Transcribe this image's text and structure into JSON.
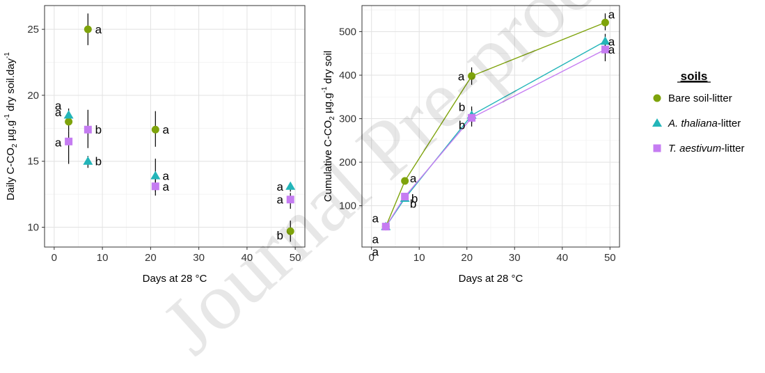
{
  "chart_data": [
    {
      "type": "scatter",
      "xlabel": "Days at 28 °C",
      "ylabel_parts": [
        "Daily C-CO",
        "2",
        " µg.g",
        "-1",
        " dry soil.day",
        "-1"
      ],
      "xlim": [
        -2,
        52
      ],
      "ylim": [
        8.5,
        26.8
      ],
      "xticks": [
        0,
        10,
        20,
        30,
        40,
        50
      ],
      "yticks": [
        10,
        15,
        20,
        25
      ],
      "grid": true,
      "series": [
        {
          "name": "Bare soil-litter",
          "color": "#7ea30b",
          "shape": "circle",
          "points": [
            {
              "x": 3,
              "y": 18.0,
              "lo": 17.3,
              "hi": 18.8,
              "letter": "a"
            },
            {
              "x": 7,
              "y": 25.0,
              "lo": 23.8,
              "hi": 26.2,
              "letter": "a"
            },
            {
              "x": 21,
              "y": 17.4,
              "lo": 16.1,
              "hi": 18.8,
              "letter": "a"
            },
            {
              "x": 49,
              "y": 9.7,
              "lo": 8.9,
              "hi": 10.5,
              "letter": "b"
            }
          ]
        },
        {
          "name": "A. thaliana-litter",
          "color": "#23b5b9",
          "shape": "triangle",
          "points": [
            {
              "x": 3,
              "y": 18.5,
              "lo": 17.9,
              "hi": 19.0,
              "letter": "a"
            },
            {
              "x": 7,
              "y": 15.0,
              "lo": 14.5,
              "hi": 15.4,
              "letter": "b"
            },
            {
              "x": 21,
              "y": 13.9,
              "lo": 12.7,
              "hi": 15.2,
              "letter": "a"
            },
            {
              "x": 49,
              "y": 13.1,
              "lo": 12.7,
              "hi": 13.4,
              "letter": "a"
            }
          ]
        },
        {
          "name": "T. aestivum-litter",
          "color": "#c57cf2",
          "shape": "square",
          "points": [
            {
              "x": 3,
              "y": 16.5,
              "lo": 14.8,
              "hi": 17.3,
              "letter": "a"
            },
            {
              "x": 7,
              "y": 17.4,
              "lo": 16.0,
              "hi": 18.9,
              "letter": "b"
            },
            {
              "x": 21,
              "y": 13.1,
              "lo": 12.4,
              "hi": 13.7,
              "letter": "a"
            },
            {
              "x": 49,
              "y": 12.1,
              "lo": 11.4,
              "hi": 12.6,
              "letter": "a"
            }
          ]
        }
      ]
    },
    {
      "type": "line",
      "xlabel": "Days at 28 °C",
      "ylabel_parts": [
        "Cumulative C-CO",
        "2",
        " µg.g",
        "-1",
        " dry soil"
      ],
      "xlim": [
        -2,
        52
      ],
      "ylim": [
        5,
        560
      ],
      "xticks": [
        0,
        10,
        20,
        30,
        40,
        50
      ],
      "yticks": [
        100,
        200,
        300,
        400,
        500
      ],
      "grid": true,
      "series": [
        {
          "name": "Bare soil-litter",
          "color": "#7ea30b",
          "shape": "circle",
          "points": [
            {
              "x": 3,
              "y": 52,
              "lo": 48,
              "hi": 57,
              "letter": "a"
            },
            {
              "x": 7,
              "y": 157,
              "lo": 152,
              "hi": 162,
              "letter": "a"
            },
            {
              "x": 21,
              "y": 398,
              "lo": 378,
              "hi": 418,
              "letter": "a"
            },
            {
              "x": 49,
              "y": 521,
              "lo": 503,
              "hi": 542,
              "letter": "a"
            }
          ]
        },
        {
          "name": "A. thaliana-litter",
          "color": "#23b5b9",
          "shape": "triangle",
          "points": [
            {
              "x": 3,
              "y": 52,
              "lo": 48,
              "hi": 57,
              "letter": "a"
            },
            {
              "x": 7,
              "y": 117,
              "lo": 110,
              "hi": 125,
              "letter": "b"
            },
            {
              "x": 21,
              "y": 308,
              "lo": 290,
              "hi": 328,
              "letter": "b"
            },
            {
              "x": 49,
              "y": 478,
              "lo": 462,
              "hi": 495,
              "letter": "a"
            }
          ]
        },
        {
          "name": "T. aestivum-litter",
          "color": "#c57cf2",
          "shape": "square",
          "points": [
            {
              "x": 3,
              "y": 52,
              "lo": 48,
              "hi": 57,
              "letter": "a"
            },
            {
              "x": 7,
              "y": 121,
              "lo": 113,
              "hi": 129,
              "letter": "b"
            },
            {
              "x": 21,
              "y": 302,
              "lo": 282,
              "hi": 322,
              "letter": "b"
            },
            {
              "x": 49,
              "y": 459,
              "lo": 432,
              "hi": 486,
              "letter": "a"
            }
          ]
        }
      ]
    }
  ],
  "legend": {
    "title": "soils",
    "position": "right",
    "items": [
      {
        "label": "Bare soil-litter",
        "italic_part": "",
        "rest": "Bare soil-litter",
        "color": "#7ea30b",
        "shape": "circle"
      },
      {
        "label": "A. thaliana-litter",
        "italic_part": "A. thaliana",
        "rest": "-litter",
        "color": "#23b5b9",
        "shape": "triangle"
      },
      {
        "label": "T. aestivum-litter",
        "italic_part": "T. aestivum",
        "rest": "-litter",
        "color": "#c57cf2",
        "shape": "square"
      }
    ]
  },
  "watermark": {
    "text": "Journal Pre-proof"
  }
}
